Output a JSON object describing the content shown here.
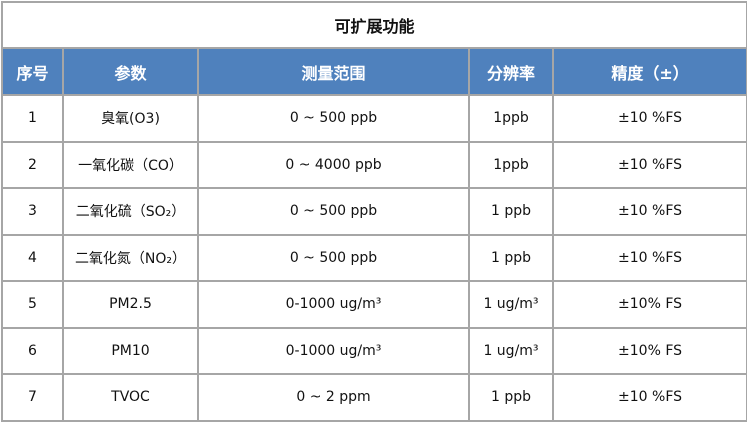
{
  "title": "可扩展功能",
  "header_bg": "#4f81bd",
  "columns": [
    "序号",
    "参数",
    "测量范围",
    "分辨率",
    "精度（±）"
  ],
  "rows": [
    {
      "no": "1",
      "param": "臭氧(O3)",
      "range": "0 ~ 500 ppb",
      "resolution": "1ppb",
      "accuracy": "±10 %FS"
    },
    {
      "no": "2",
      "param": "一氧化碳（CO）",
      "range": "0 ~ 4000 ppb",
      "resolution": "1ppb",
      "accuracy": "±10 %FS"
    },
    {
      "no": "3",
      "param": "二氧化硫（SO₂）",
      "range": "0 ~ 500 ppb",
      "resolution": "1 ppb",
      "accuracy": "±10 %FS"
    },
    {
      "no": "4",
      "param": "二氧化氮（NO₂）",
      "range": "0 ~ 500 ppb",
      "resolution": "1 ppb",
      "accuracy": "±10 %FS"
    },
    {
      "no": "5",
      "param": "PM2.5",
      "range": "0-1000 ug/m³",
      "resolution": "1 ug/m³",
      "accuracy": "±10% FS"
    },
    {
      "no": "6",
      "param": "PM10",
      "range": "0-1000 ug/m³",
      "resolution": "1 ug/m³",
      "accuracy": "±10% FS"
    },
    {
      "no": "7",
      "param": "TVOC",
      "range": "0 ~ 2 ppm",
      "resolution": "1 ppb",
      "accuracy": "±10 %FS"
    }
  ]
}
